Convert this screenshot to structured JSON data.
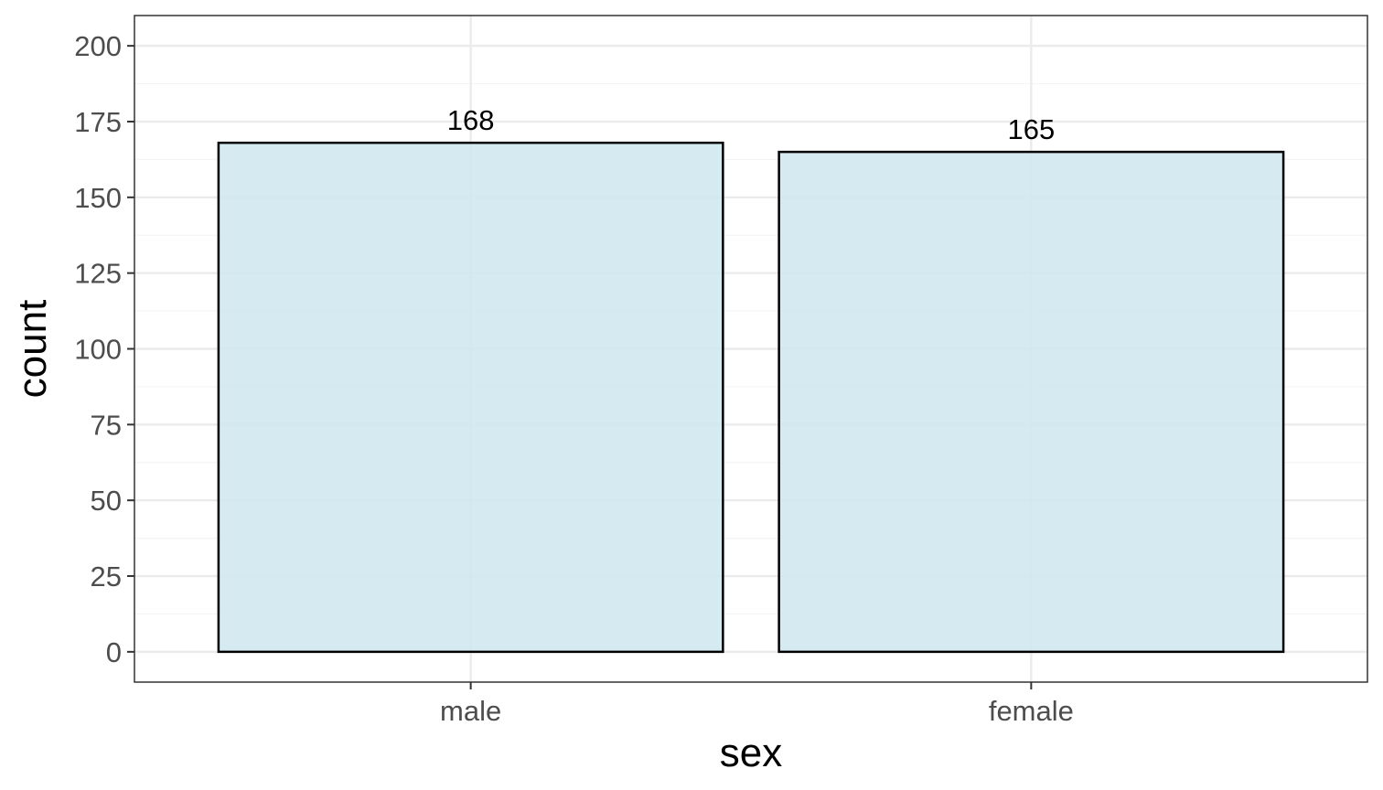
{
  "chart_data": {
    "type": "bar",
    "categories": [
      "male",
      "female"
    ],
    "values": [
      168,
      165
    ],
    "data_labels": [
      "168",
      "165"
    ],
    "title": "",
    "xlabel": "sex",
    "ylabel": "count",
    "ylim": [
      -10,
      210
    ],
    "yticks": [
      0,
      25,
      50,
      75,
      100,
      125,
      150,
      175,
      200
    ],
    "ytick_labels": [
      "0",
      "25",
      "50",
      "75",
      "100",
      "125",
      "150",
      "175",
      "200"
    ],
    "grid": true,
    "legend": "none",
    "colors": {
      "bar_fill": "#d0e8ef",
      "bar_stroke": "#000000",
      "grid_major": "#ebebeb",
      "grid_minor": "#f4f4f4",
      "panel_border": "#333333"
    }
  }
}
